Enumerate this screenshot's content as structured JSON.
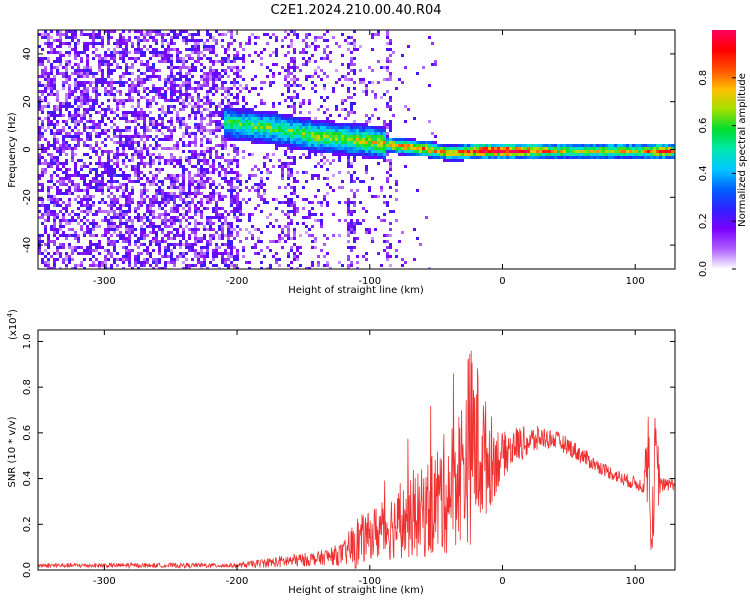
{
  "figure": {
    "title": "C2E1.2024.210.00.40.R04"
  },
  "chart_data": [
    {
      "type": "heatmap",
      "xlabel": "Height of straight line (km)",
      "ylabel": "Frequency (Hz)",
      "xlim": [
        -350,
        130
      ],
      "ylim": [
        -50,
        50
      ],
      "xticks": [
        -300,
        -200,
        -100,
        0,
        100
      ],
      "yticks": [
        -40,
        -20,
        0,
        20,
        40
      ],
      "colorbar": {
        "label": "Normalized spectral amplitude",
        "range": [
          0.0,
          1.0
        ],
        "ticks": [
          0.0,
          0.2,
          0.4,
          0.6,
          0.8
        ],
        "colors": [
          "#ffffff",
          "#b060ff",
          "#7a00ff",
          "#3020ff",
          "#0060ff",
          "#00c8ff",
          "#00e8b0",
          "#00dd30",
          "#a0e000",
          "#ffc000",
          "#ff5000",
          "#ff0000",
          "#ff0060"
        ]
      },
      "band": {
        "x": [
          -210,
          -200,
          -180,
          -160,
          -140,
          -120,
          -100,
          -80,
          -60,
          -40,
          -20,
          0,
          20,
          50,
          80,
          100,
          120,
          130
        ],
        "center_y": [
          12,
          11,
          10,
          8,
          6,
          5,
          4,
          2,
          1,
          -1,
          0,
          0,
          0,
          0,
          0,
          0,
          0,
          0
        ],
        "amplitude": [
          0.4,
          0.45,
          0.45,
          0.45,
          0.5,
          0.5,
          0.55,
          0.65,
          0.7,
          0.6,
          0.85,
          0.9,
          0.75,
          0.5,
          0.6,
          0.55,
          0.8,
          0.6
        ]
      },
      "grid": false
    },
    {
      "type": "line",
      "xlabel": "Height of straight line (km)",
      "ylabel": "SNR (10 * v/v)",
      "yscale_label": "(x10",
      "yscale_exp": "4",
      "yscale_close": ")",
      "xlim": [
        -350,
        130
      ],
      "ylim": [
        0.0,
        1.05
      ],
      "xticks": [
        -300,
        -200,
        -100,
        0,
        100
      ],
      "yticks": [
        0.0,
        0.2,
        0.4,
        0.6,
        0.8,
        1.0
      ],
      "line_color": "#ee3030",
      "series": [
        {
          "x": [
            -350,
            -300,
            -250,
            -200,
            -180,
            -160,
            -140,
            -120,
            -110,
            -100,
            -90,
            -80,
            -70,
            -60,
            -50,
            -40,
            -30,
            -25,
            -20,
            -15,
            -10,
            0,
            10,
            20,
            30,
            40,
            50,
            60,
            70,
            80,
            90,
            100,
            105,
            110,
            112,
            115,
            120,
            130
          ],
          "y": [
            0.02,
            0.02,
            0.02,
            0.02,
            0.03,
            0.04,
            0.05,
            0.07,
            0.12,
            0.15,
            0.18,
            0.2,
            0.22,
            0.25,
            0.3,
            0.35,
            0.45,
            0.55,
            0.55,
            0.5,
            0.48,
            0.5,
            0.55,
            0.56,
            0.58,
            0.57,
            0.54,
            0.5,
            0.46,
            0.43,
            0.4,
            0.38,
            0.37,
            0.5,
            0.1,
            0.45,
            0.37,
            0.38
          ],
          "spread": [
            0.01,
            0.01,
            0.01,
            0.01,
            0.02,
            0.03,
            0.03,
            0.05,
            0.12,
            0.1,
            0.15,
            0.15,
            0.17,
            0.2,
            0.25,
            0.28,
            0.32,
            0.45,
            0.4,
            0.3,
            0.22,
            0.1,
            0.08,
            0.07,
            0.05,
            0.04,
            0.04,
            0.04,
            0.03,
            0.03,
            0.03,
            0.03,
            0.03,
            0.25,
            0.05,
            0.25,
            0.03,
            0.03
          ]
        }
      ],
      "grid": false
    }
  ]
}
